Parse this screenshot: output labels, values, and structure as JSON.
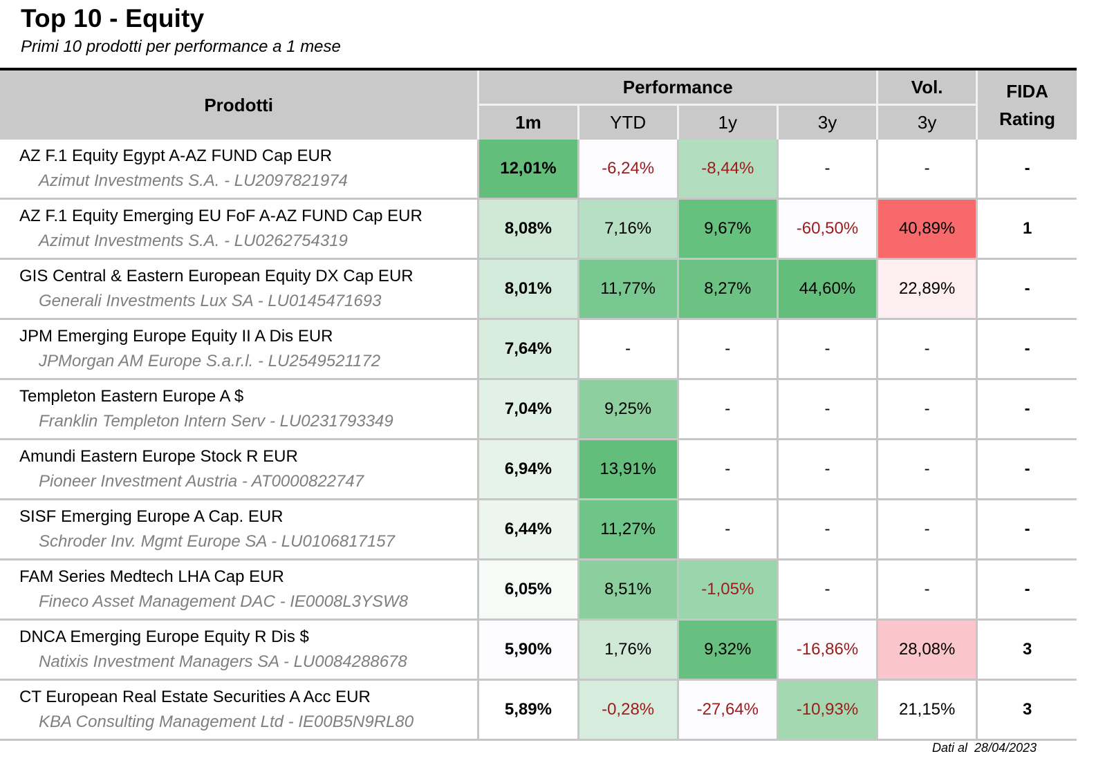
{
  "header": {
    "title": "Top 10 - Equity",
    "subtitle": "Primi 10 prodotti per performance a 1 mese"
  },
  "table": {
    "col_prodotti": "Prodotti",
    "group_performance": "Performance",
    "group_vol": "Vol.",
    "fida_line1": "FIDA",
    "fida_line2": "Rating",
    "sub_1m": "1m",
    "sub_ytd": "YTD",
    "sub_1y": "1y",
    "sub_3y": "3y",
    "sub_vol_3y": "3y"
  },
  "chart_data": {
    "type": "table",
    "columns": [
      "Prodotti",
      "1m",
      "YTD",
      "1y",
      "3y",
      "Vol. 3y",
      "FIDA Rating"
    ],
    "rows": [
      {
        "name": "AZ F.1 Equity Egypt A-AZ FUND Cap EUR",
        "manager": "Azimut Investments S.A. - LU2097821974",
        "m1": "12,01%",
        "ytd": "-6,24%",
        "y1": "-8,44%",
        "y3": "-",
        "vol3y": "-",
        "fida": "-"
      },
      {
        "name": "AZ F.1 Equity Emerging EU FoF A-AZ FUND Cap EUR",
        "manager": "Azimut Investments S.A. - LU0262754319",
        "m1": "8,08%",
        "ytd": "7,16%",
        "y1": "9,67%",
        "y3": "-60,50%",
        "vol3y": "40,89%",
        "fida": "1"
      },
      {
        "name": "GIS Central & Eastern European Equity DX Cap EUR",
        "manager": "Generali Investments Lux SA - LU0145471693",
        "m1": "8,01%",
        "ytd": "11,77%",
        "y1": "8,27%",
        "y3": "44,60%",
        "vol3y": "22,89%",
        "fida": "-"
      },
      {
        "name": "JPM Emerging Europe Equity II A Dis EUR",
        "manager": "JPMorgan AM Europe S.a.r.l. - LU2549521172",
        "m1": "7,64%",
        "ytd": "-",
        "y1": "-",
        "y3": "-",
        "vol3y": "-",
        "fida": "-"
      },
      {
        "name": "Templeton Eastern Europe A $",
        "manager": "Franklin Templeton Intern Serv - LU0231793349",
        "m1": "7,04%",
        "ytd": "9,25%",
        "y1": "-",
        "y3": "-",
        "vol3y": "-",
        "fida": "-"
      },
      {
        "name": "Amundi Eastern Europe Stock R EUR",
        "manager": "Pioneer Investment Austria - AT0000822747",
        "m1": "6,94%",
        "ytd": "13,91%",
        "y1": "-",
        "y3": "-",
        "vol3y": "-",
        "fida": "-"
      },
      {
        "name": "SISF Emerging Europe A Cap. EUR",
        "manager": "Schroder Inv. Mgmt Europe SA - LU0106817157",
        "m1": "6,44%",
        "ytd": "11,27%",
        "y1": "-",
        "y3": "-",
        "vol3y": "-",
        "fida": "-"
      },
      {
        "name": "FAM Series Medtech LHA Cap EUR",
        "manager": "Fineco Asset Management DAC - IE0008L3YSW8",
        "m1": "6,05%",
        "ytd": "8,51%",
        "y1": "-1,05%",
        "y3": "-",
        "vol3y": "-",
        "fida": "-"
      },
      {
        "name": "DNCA Emerging Europe Equity R Dis $",
        "manager": "Natixis Investment Managers SA - LU0084288678",
        "m1": "5,90%",
        "ytd": "1,76%",
        "y1": "9,32%",
        "y3": "-16,86%",
        "vol3y": "28,08%",
        "fida": "3"
      },
      {
        "name": "CT European Real Estate Securities A Acc EUR",
        "manager": "KBA Consulting Management Ltd - IE00B5N9RL80",
        "m1": "5,89%",
        "ytd": "-0,28%",
        "y1": "-27,64%",
        "y3": "-10,93%",
        "vol3y": "21,15%",
        "fida": "3"
      }
    ],
    "cell_colors": [
      {
        "m1": "#63be7b",
        "ytd": "#fcfcff",
        "y1": "#b2ddbf",
        "y3": "#ffffff",
        "vol3y": "#ffffff",
        "fida": "#ffffff"
      },
      {
        "m1": "#cfe9d6",
        "ytd": "#b7dfc3",
        "y1": "#66c07e",
        "y3": "#fcfcff",
        "vol3y": "#f8696b",
        "fida": "#ffffff"
      },
      {
        "m1": "#d2ead9",
        "ytd": "#7ac891",
        "y1": "#6bc282",
        "y3": "#63be7b",
        "vol3y": "#fdeff1",
        "fida": "#ffffff"
      },
      {
        "m1": "#d9edde",
        "ytd": "#ffffff",
        "y1": "#ffffff",
        "y3": "#ffffff",
        "vol3y": "#ffffff",
        "fida": "#ffffff"
      },
      {
        "m1": "#e2f1e7",
        "ytd": "#8ecf9f",
        "y1": "#ffffff",
        "y3": "#ffffff",
        "vol3y": "#ffffff",
        "fida": "#ffffff"
      },
      {
        "m1": "#e6f3ea",
        "ytd": "#63be7b",
        "y1": "#ffffff",
        "y3": "#ffffff",
        "vol3y": "#ffffff",
        "fida": "#ffffff"
      },
      {
        "m1": "#ecf6ef",
        "ytd": "#6fc487",
        "y1": "#ffffff",
        "y3": "#ffffff",
        "vol3y": "#ffffff",
        "fida": "#ffffff"
      },
      {
        "m1": "#f7fbf8",
        "ytd": "#8ccf9e",
        "y1": "#9bd5ab",
        "y3": "#ffffff",
        "vol3y": "#ffffff",
        "fida": "#ffffff"
      },
      {
        "m1": "#fcfcff",
        "ytd": "#cfe9d6",
        "y1": "#67c07f",
        "y3": "#fcfcff",
        "vol3y": "#fbc6cb",
        "fida": "#ffffff"
      },
      {
        "m1": "#ffffff",
        "ytd": "#d6ecdc",
        "y1": "#fcfcff",
        "y3": "#a3d8b1",
        "vol3y": "#ffffff",
        "fida": "#ffffff"
      }
    ]
  },
  "footer": {
    "label": "Dati al",
    "date": "28/04/2023"
  }
}
